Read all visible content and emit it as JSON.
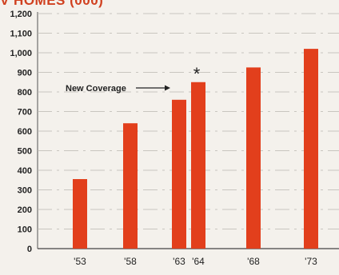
{
  "chart_data": {
    "type": "bar",
    "title": "V HOMES (000)",
    "categories": [
      "'53",
      "'58",
      "'63",
      "'64",
      "'68",
      "'73"
    ],
    "values": [
      355,
      640,
      760,
      850,
      925,
      1020
    ],
    "yticks": [
      "0",
      "100",
      "200",
      "300",
      "400",
      "500",
      "600",
      "700",
      "800",
      "900",
      "1,000",
      "1,100",
      "1,200"
    ],
    "ylim": [
      0,
      1200
    ],
    "grid": true,
    "bar_color": "#e23f1c",
    "grid_color": "#b9b6b0",
    "annotation": {
      "text": "New Coverage",
      "marker": "*",
      "target_category": "'64"
    }
  }
}
